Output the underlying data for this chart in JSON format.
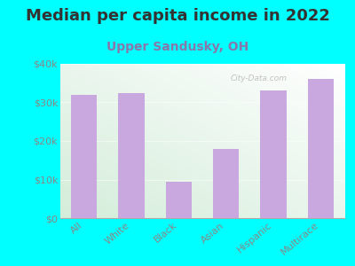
{
  "title": "Median per capita income in 2022",
  "subtitle": "Upper Sandusky, OH",
  "categories": [
    "All",
    "White",
    "Black",
    "Asian",
    "Hispanic",
    "Multirace"
  ],
  "values": [
    32000,
    32500,
    9500,
    18000,
    33000,
    36000
  ],
  "bar_color": "#c9a8e0",
  "bar_edge_color": "#c9a8e0",
  "title_fontsize": 13,
  "subtitle_fontsize": 10,
  "subtitle_color": "#8878aa",
  "title_color": "#333333",
  "tick_color": "#888888",
  "background_color": "#00FFFF",
  "ylim": [
    0,
    40000
  ],
  "yticks": [
    0,
    10000,
    20000,
    30000,
    40000
  ],
  "ytick_labels": [
    "$0",
    "$10k",
    "$20k",
    "$30k",
    "$40k"
  ],
  "watermark": "City-Data.com",
  "grad_color_bl": "#d4edda",
  "grad_color_tr": "#f8fff8"
}
